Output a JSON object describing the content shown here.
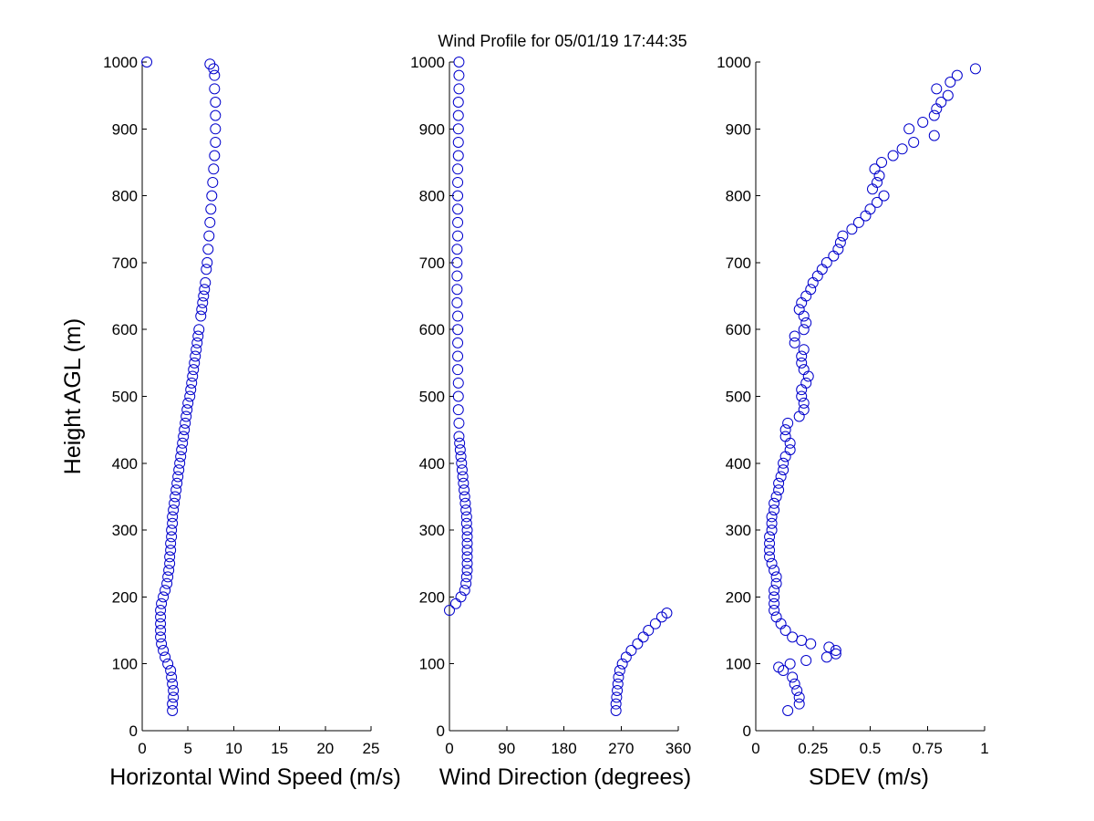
{
  "title": "Wind Profile for  05/01/19 17:44:35",
  "marker_color": "#0000cc",
  "chart_data": [
    {
      "type": "scatter",
      "name": "speed",
      "xlabel": "Horizontal Wind Speed (m/s)",
      "ylabel": "Height AGL (m)",
      "xlim": [
        0,
        25
      ],
      "ylim": [
        0,
        1000
      ],
      "xticks": [
        0,
        5,
        10,
        15,
        20,
        25
      ],
      "xtick_labels": [
        "0",
        "5",
        "10",
        "15",
        "20",
        "25"
      ],
      "yticks": [
        0,
        100,
        200,
        300,
        400,
        500,
        600,
        700,
        800,
        900,
        1000
      ],
      "ytick_labels": [
        "0",
        "100",
        "200",
        "300",
        "400",
        "500",
        "600",
        "700",
        "800",
        "900",
        "1000"
      ],
      "marker": "open-circle",
      "points": [
        [
          3.3,
          30
        ],
        [
          3.3,
          40
        ],
        [
          3.4,
          50
        ],
        [
          3.4,
          60
        ],
        [
          3.3,
          70
        ],
        [
          3.2,
          80
        ],
        [
          3.1,
          90
        ],
        [
          2.8,
          100
        ],
        [
          2.5,
          110
        ],
        [
          2.3,
          120
        ],
        [
          2.1,
          130
        ],
        [
          2.0,
          140
        ],
        [
          2.0,
          150
        ],
        [
          2.0,
          160
        ],
        [
          2.0,
          170
        ],
        [
          2.0,
          180
        ],
        [
          2.1,
          190
        ],
        [
          2.3,
          200
        ],
        [
          2.5,
          210
        ],
        [
          2.7,
          220
        ],
        [
          2.8,
          230
        ],
        [
          2.9,
          240
        ],
        [
          3.0,
          250
        ],
        [
          3.0,
          260
        ],
        [
          3.1,
          270
        ],
        [
          3.1,
          280
        ],
        [
          3.2,
          290
        ],
        [
          3.2,
          300
        ],
        [
          3.3,
          310
        ],
        [
          3.3,
          320
        ],
        [
          3.4,
          330
        ],
        [
          3.5,
          340
        ],
        [
          3.6,
          350
        ],
        [
          3.7,
          360
        ],
        [
          3.8,
          370
        ],
        [
          3.9,
          380
        ],
        [
          4.0,
          390
        ],
        [
          4.1,
          400
        ],
        [
          4.2,
          410
        ],
        [
          4.3,
          420
        ],
        [
          4.4,
          430
        ],
        [
          4.5,
          440
        ],
        [
          4.6,
          450
        ],
        [
          4.7,
          460
        ],
        [
          4.8,
          470
        ],
        [
          4.9,
          480
        ],
        [
          5.0,
          490
        ],
        [
          5.2,
          500
        ],
        [
          5.3,
          510
        ],
        [
          5.4,
          520
        ],
        [
          5.5,
          530
        ],
        [
          5.6,
          540
        ],
        [
          5.7,
          550
        ],
        [
          5.8,
          560
        ],
        [
          5.9,
          570
        ],
        [
          6.0,
          580
        ],
        [
          6.1,
          590
        ],
        [
          6.2,
          600
        ],
        [
          6.4,
          620
        ],
        [
          6.5,
          630
        ],
        [
          6.6,
          640
        ],
        [
          6.7,
          650
        ],
        [
          6.8,
          660
        ],
        [
          6.9,
          670
        ],
        [
          7.0,
          690
        ],
        [
          7.1,
          700
        ],
        [
          7.2,
          720
        ],
        [
          7.3,
          740
        ],
        [
          7.4,
          760
        ],
        [
          7.5,
          780
        ],
        [
          7.6,
          800
        ],
        [
          7.7,
          820
        ],
        [
          7.8,
          840
        ],
        [
          7.9,
          860
        ],
        [
          8.0,
          880
        ],
        [
          8.0,
          900
        ],
        [
          8.0,
          920
        ],
        [
          8.0,
          940
        ],
        [
          7.9,
          960
        ],
        [
          7.9,
          980
        ],
        [
          7.8,
          990
        ],
        [
          7.4,
          997
        ],
        [
          0.5,
          1000
        ]
      ]
    },
    {
      "type": "scatter",
      "name": "direction",
      "xlabel": "Wind Direction (degrees)",
      "ylabel": "",
      "xlim": [
        0,
        360
      ],
      "ylim": [
        0,
        1000
      ],
      "xticks": [
        0,
        90,
        180,
        270,
        360
      ],
      "xtick_labels": [
        "0",
        "90",
        "180",
        "270",
        "360"
      ],
      "yticks": [
        0,
        100,
        200,
        300,
        400,
        500,
        600,
        700,
        800,
        900,
        1000
      ],
      "ytick_labels": [
        "0",
        "100",
        "200",
        "300",
        "400",
        "500",
        "600",
        "700",
        "800",
        "900",
        "1000"
      ],
      "marker": "open-circle",
      "points": [
        [
          262,
          30
        ],
        [
          262,
          40
        ],
        [
          263,
          50
        ],
        [
          264,
          60
        ],
        [
          265,
          70
        ],
        [
          266,
          80
        ],
        [
          268,
          90
        ],
        [
          272,
          100
        ],
        [
          278,
          110
        ],
        [
          286,
          120
        ],
        [
          296,
          130
        ],
        [
          305,
          140
        ],
        [
          313,
          150
        ],
        [
          324,
          160
        ],
        [
          334,
          170
        ],
        [
          342,
          176
        ],
        [
          0,
          180
        ],
        [
          10,
          190
        ],
        [
          18,
          200
        ],
        [
          24,
          210
        ],
        [
          26,
          220
        ],
        [
          27,
          230
        ],
        [
          28,
          240
        ],
        [
          28,
          250
        ],
        [
          28,
          260
        ],
        [
          28,
          270
        ],
        [
          28,
          280
        ],
        [
          28,
          290
        ],
        [
          28,
          300
        ],
        [
          27,
          310
        ],
        [
          27,
          320
        ],
        [
          26,
          330
        ],
        [
          25,
          340
        ],
        [
          24,
          350
        ],
        [
          23,
          360
        ],
        [
          22,
          370
        ],
        [
          21,
          380
        ],
        [
          20,
          390
        ],
        [
          19,
          400
        ],
        [
          18,
          410
        ],
        [
          17,
          420
        ],
        [
          16,
          430
        ],
        [
          15,
          440
        ],
        [
          15,
          460
        ],
        [
          14,
          480
        ],
        [
          14,
          500
        ],
        [
          14,
          520
        ],
        [
          13,
          540
        ],
        [
          13,
          560
        ],
        [
          13,
          580
        ],
        [
          13,
          600
        ],
        [
          13,
          620
        ],
        [
          12,
          640
        ],
        [
          12,
          660
        ],
        [
          12,
          680
        ],
        [
          12,
          700
        ],
        [
          12,
          720
        ],
        [
          13,
          740
        ],
        [
          13,
          760
        ],
        [
          13,
          780
        ],
        [
          13,
          800
        ],
        [
          13,
          820
        ],
        [
          13,
          840
        ],
        [
          14,
          860
        ],
        [
          14,
          880
        ],
        [
          14,
          900
        ],
        [
          14,
          920
        ],
        [
          14,
          940
        ],
        [
          15,
          960
        ],
        [
          15,
          980
        ],
        [
          15,
          1000
        ]
      ]
    },
    {
      "type": "scatter",
      "name": "sdev",
      "xlabel": "SDEV  (m/s)",
      "ylabel": "",
      "xlim": [
        0,
        1
      ],
      "ylim": [
        0,
        1000
      ],
      "xticks": [
        0,
        0.25,
        0.5,
        0.75,
        1
      ],
      "xtick_labels": [
        "0",
        "0.25",
        "0.5",
        "0.75",
        "1"
      ],
      "yticks": [
        0,
        100,
        200,
        300,
        400,
        500,
        600,
        700,
        800,
        900,
        1000
      ],
      "ytick_labels": [
        "0",
        "100",
        "200",
        "300",
        "400",
        "500",
        "600",
        "700",
        "800",
        "900",
        "1000"
      ],
      "marker": "open-circle",
      "points": [
        [
          0.14,
          30
        ],
        [
          0.19,
          40
        ],
        [
          0.19,
          50
        ],
        [
          0.18,
          60
        ],
        [
          0.17,
          70
        ],
        [
          0.16,
          80
        ],
        [
          0.12,
          90
        ],
        [
          0.1,
          95
        ],
        [
          0.15,
          100
        ],
        [
          0.22,
          105
        ],
        [
          0.31,
          110
        ],
        [
          0.35,
          115
        ],
        [
          0.35,
          120
        ],
        [
          0.32,
          125
        ],
        [
          0.24,
          130
        ],
        [
          0.2,
          135
        ],
        [
          0.16,
          140
        ],
        [
          0.13,
          150
        ],
        [
          0.11,
          160
        ],
        [
          0.09,
          170
        ],
        [
          0.08,
          180
        ],
        [
          0.08,
          190
        ],
        [
          0.08,
          200
        ],
        [
          0.08,
          210
        ],
        [
          0.09,
          220
        ],
        [
          0.09,
          230
        ],
        [
          0.08,
          240
        ],
        [
          0.07,
          250
        ],
        [
          0.06,
          260
        ],
        [
          0.06,
          270
        ],
        [
          0.06,
          280
        ],
        [
          0.06,
          290
        ],
        [
          0.07,
          300
        ],
        [
          0.07,
          310
        ],
        [
          0.07,
          320
        ],
        [
          0.08,
          330
        ],
        [
          0.08,
          340
        ],
        [
          0.09,
          350
        ],
        [
          0.1,
          360
        ],
        [
          0.1,
          370
        ],
        [
          0.11,
          380
        ],
        [
          0.12,
          390
        ],
        [
          0.12,
          400
        ],
        [
          0.13,
          410
        ],
        [
          0.15,
          420
        ],
        [
          0.15,
          430
        ],
        [
          0.13,
          440
        ],
        [
          0.13,
          450
        ],
        [
          0.14,
          460
        ],
        [
          0.19,
          470
        ],
        [
          0.21,
          480
        ],
        [
          0.21,
          490
        ],
        [
          0.2,
          500
        ],
        [
          0.2,
          510
        ],
        [
          0.22,
          520
        ],
        [
          0.23,
          530
        ],
        [
          0.21,
          540
        ],
        [
          0.2,
          550
        ],
        [
          0.2,
          560
        ],
        [
          0.21,
          570
        ],
        [
          0.17,
          580
        ],
        [
          0.17,
          590
        ],
        [
          0.21,
          600
        ],
        [
          0.22,
          610
        ],
        [
          0.21,
          620
        ],
        [
          0.19,
          630
        ],
        [
          0.2,
          640
        ],
        [
          0.22,
          650
        ],
        [
          0.24,
          660
        ],
        [
          0.25,
          670
        ],
        [
          0.27,
          680
        ],
        [
          0.29,
          690
        ],
        [
          0.31,
          700
        ],
        [
          0.34,
          710
        ],
        [
          0.36,
          720
        ],
        [
          0.37,
          730
        ],
        [
          0.38,
          740
        ],
        [
          0.42,
          750
        ],
        [
          0.45,
          760
        ],
        [
          0.48,
          770
        ],
        [
          0.5,
          780
        ],
        [
          0.53,
          790
        ],
        [
          0.56,
          800
        ],
        [
          0.51,
          810
        ],
        [
          0.53,
          820
        ],
        [
          0.54,
          830
        ],
        [
          0.52,
          840
        ],
        [
          0.55,
          850
        ],
        [
          0.6,
          860
        ],
        [
          0.64,
          870
        ],
        [
          0.69,
          880
        ],
        [
          0.78,
          890
        ],
        [
          0.67,
          900
        ],
        [
          0.73,
          910
        ],
        [
          0.78,
          920
        ],
        [
          0.79,
          930
        ],
        [
          0.81,
          940
        ],
        [
          0.84,
          950
        ],
        [
          0.79,
          960
        ],
        [
          0.85,
          970
        ],
        [
          0.88,
          980
        ],
        [
          0.96,
          990
        ]
      ]
    }
  ]
}
